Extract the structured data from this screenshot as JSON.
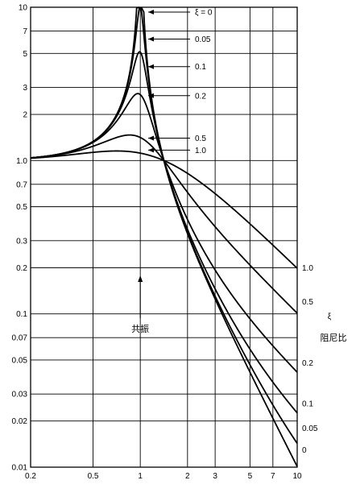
{
  "chart_data": {
    "type": "line",
    "x_scale": "log",
    "y_scale": "log",
    "xlim": [
      0.2,
      10
    ],
    "ylim": [
      0.01,
      10
    ],
    "grid": true,
    "x_ticks": [
      {
        "value": 0.2,
        "label": "0.2"
      },
      {
        "value": 0.5,
        "label": "0.5"
      },
      {
        "value": 1,
        "label": "1"
      },
      {
        "value": 2,
        "label": "2"
      },
      {
        "value": 3,
        "label": "3"
      },
      {
        "value": 5,
        "label": "5"
      },
      {
        "value": 7,
        "label": "7"
      },
      {
        "value": 10,
        "label": "10"
      }
    ],
    "y_ticks": [
      {
        "value": 10,
        "label": "10"
      },
      {
        "value": 7,
        "label": "7"
      },
      {
        "value": 5,
        "label": "5"
      },
      {
        "value": 3,
        "label": "3"
      },
      {
        "value": 2,
        "label": "2"
      },
      {
        "value": 1,
        "label": "1.0"
      },
      {
        "value": 0.7,
        "label": "0.7"
      },
      {
        "value": 0.5,
        "label": "0.5"
      },
      {
        "value": 0.3,
        "label": "0.3"
      },
      {
        "value": 0.2,
        "label": "0.2"
      },
      {
        "value": 0.1,
        "label": "0.1"
      },
      {
        "value": 0.07,
        "label": "0.07"
      },
      {
        "value": 0.05,
        "label": "0.05"
      },
      {
        "value": 0.03,
        "label": "0.03"
      },
      {
        "value": 0.02,
        "label": "0.02"
      },
      {
        "value": 0.01,
        "label": "0.01"
      }
    ],
    "series": [
      {
        "name": "0",
        "damping": 0
      },
      {
        "name": "0.05",
        "damping": 0.05
      },
      {
        "name": "0.1",
        "damping": 0.1
      },
      {
        "name": "0.2",
        "damping": 0.2
      },
      {
        "name": "0.5",
        "damping": 0.5
      },
      {
        "name": "1.0",
        "damping": 1.0
      }
    ],
    "top_labels": [
      {
        "text": "ξ = 0",
        "y": 9.3
      },
      {
        "text": "0.05",
        "y": 6.2
      },
      {
        "text": "0.1",
        "y": 4.1
      },
      {
        "text": "0.2",
        "y": 2.65
      },
      {
        "text": "0.5",
        "y": 1.4
      },
      {
        "text": "1.0",
        "y": 1.17
      }
    ],
    "right_labels": [
      {
        "text": "1.0",
        "y": 0.2
      },
      {
        "text": "0.5",
        "y": 0.12
      },
      {
        "text": "0.2",
        "y": 0.048
      },
      {
        "text": "0.1",
        "y": 0.026
      },
      {
        "text": "0.05",
        "y": 0.018
      },
      {
        "text": "0",
        "y": 0.013
      }
    ],
    "axis_title_right": {
      "symbol": "ξ",
      "text": "阻尼比"
    },
    "annotation": {
      "text": "共振",
      "x": 1
    }
  }
}
